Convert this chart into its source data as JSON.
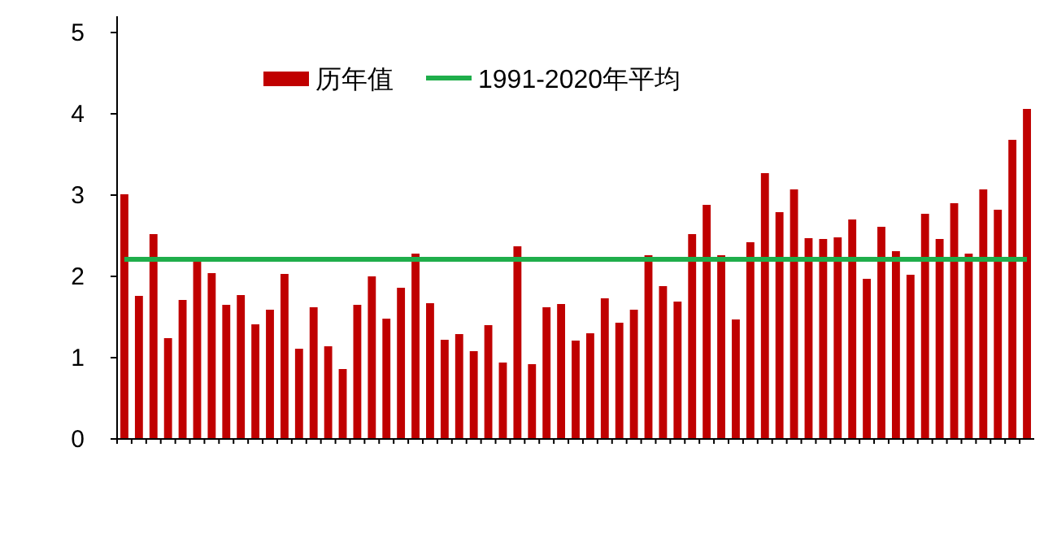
{
  "chart_data": {
    "type": "bar",
    "categories": [
      null,
      null,
      null,
      null,
      null,
      null,
      null,
      null,
      null,
      null,
      null,
      null,
      null,
      null,
      null,
      null,
      null,
      null,
      null,
      null,
      null,
      null,
      null,
      null,
      null,
      null,
      null,
      null,
      null,
      null,
      null,
      null,
      null,
      null,
      null,
      null,
      null,
      null,
      null,
      null,
      null,
      null,
      null,
      null,
      null,
      null,
      null,
      null,
      null,
      null,
      null,
      null,
      null,
      null,
      null,
      null,
      null,
      null,
      null,
      null,
      null,
      null,
      null
    ],
    "series": [
      {
        "name": "历年值",
        "color": "#c00000",
        "values": [
          3.01,
          1.76,
          2.52,
          1.24,
          1.71,
          2.19,
          2.04,
          1.65,
          1.77,
          1.41,
          1.59,
          2.03,
          1.11,
          1.62,
          1.14,
          0.86,
          1.65,
          2.0,
          1.48,
          1.86,
          2.28,
          1.67,
          1.22,
          1.29,
          1.08,
          1.4,
          0.94,
          2.37,
          0.92,
          1.62,
          1.66,
          1.21,
          1.3,
          1.73,
          1.43,
          1.59,
          2.26,
          1.88,
          1.69,
          2.52,
          2.88,
          2.26,
          1.47,
          2.42,
          3.27,
          2.79,
          3.07,
          2.47,
          2.46,
          2.48,
          2.7,
          1.97,
          2.61,
          2.31,
          2.02,
          2.77,
          2.46,
          2.9,
          2.28,
          3.07,
          2.82,
          3.68,
          4.06
        ]
      }
    ],
    "ref_lines": [
      {
        "axis": "y",
        "value": 2.21,
        "label": "1991-2020年平均",
        "color": "#1fae4b",
        "line_style": "solid"
      }
    ],
    "ylim": [
      0,
      5.2
    ],
    "yticks": [
      0,
      1,
      2,
      3,
      4,
      5
    ],
    "tick_labels": "y",
    "legend": "top",
    "grid": false
  }
}
